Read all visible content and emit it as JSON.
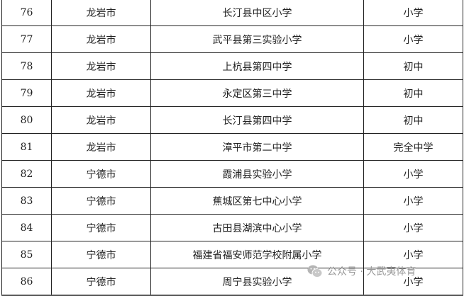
{
  "rows": [
    {
      "no": "76",
      "city": "龙岩市",
      "school": "长汀县中区小学",
      "type": "小学"
    },
    {
      "no": "77",
      "city": "龙岩市",
      "school": "武平县第三实验小学",
      "type": "小学"
    },
    {
      "no": "78",
      "city": "龙岩市",
      "school": "上杭县第四中学",
      "type": "初中"
    },
    {
      "no": "79",
      "city": "龙岩市",
      "school": "永定区第三中学",
      "type": "初中"
    },
    {
      "no": "80",
      "city": "龙岩市",
      "school": "长汀县第四中学",
      "type": "初中"
    },
    {
      "no": "81",
      "city": "龙岩市",
      "school": "漳平市第二中学",
      "type": "完全中学"
    },
    {
      "no": "82",
      "city": "宁德市",
      "school": "霞浦县实验小学",
      "type": "小学"
    },
    {
      "no": "83",
      "city": "宁德市",
      "school": "蕉城区第七中心小学",
      "type": "小学"
    },
    {
      "no": "84",
      "city": "宁德市",
      "school": "古田县湖滨中心小学",
      "type": "小学"
    },
    {
      "no": "85",
      "city": "宁德市",
      "school": "福建省福安师范学校附属小学",
      "type": "小学"
    },
    {
      "no": "86",
      "city": "宁德市",
      "school": "周宁县实验小学",
      "type": "小学"
    }
  ],
  "watermark": {
    "text": "公众号 · 大武夷体育",
    "icon": "wechat-icon"
  }
}
